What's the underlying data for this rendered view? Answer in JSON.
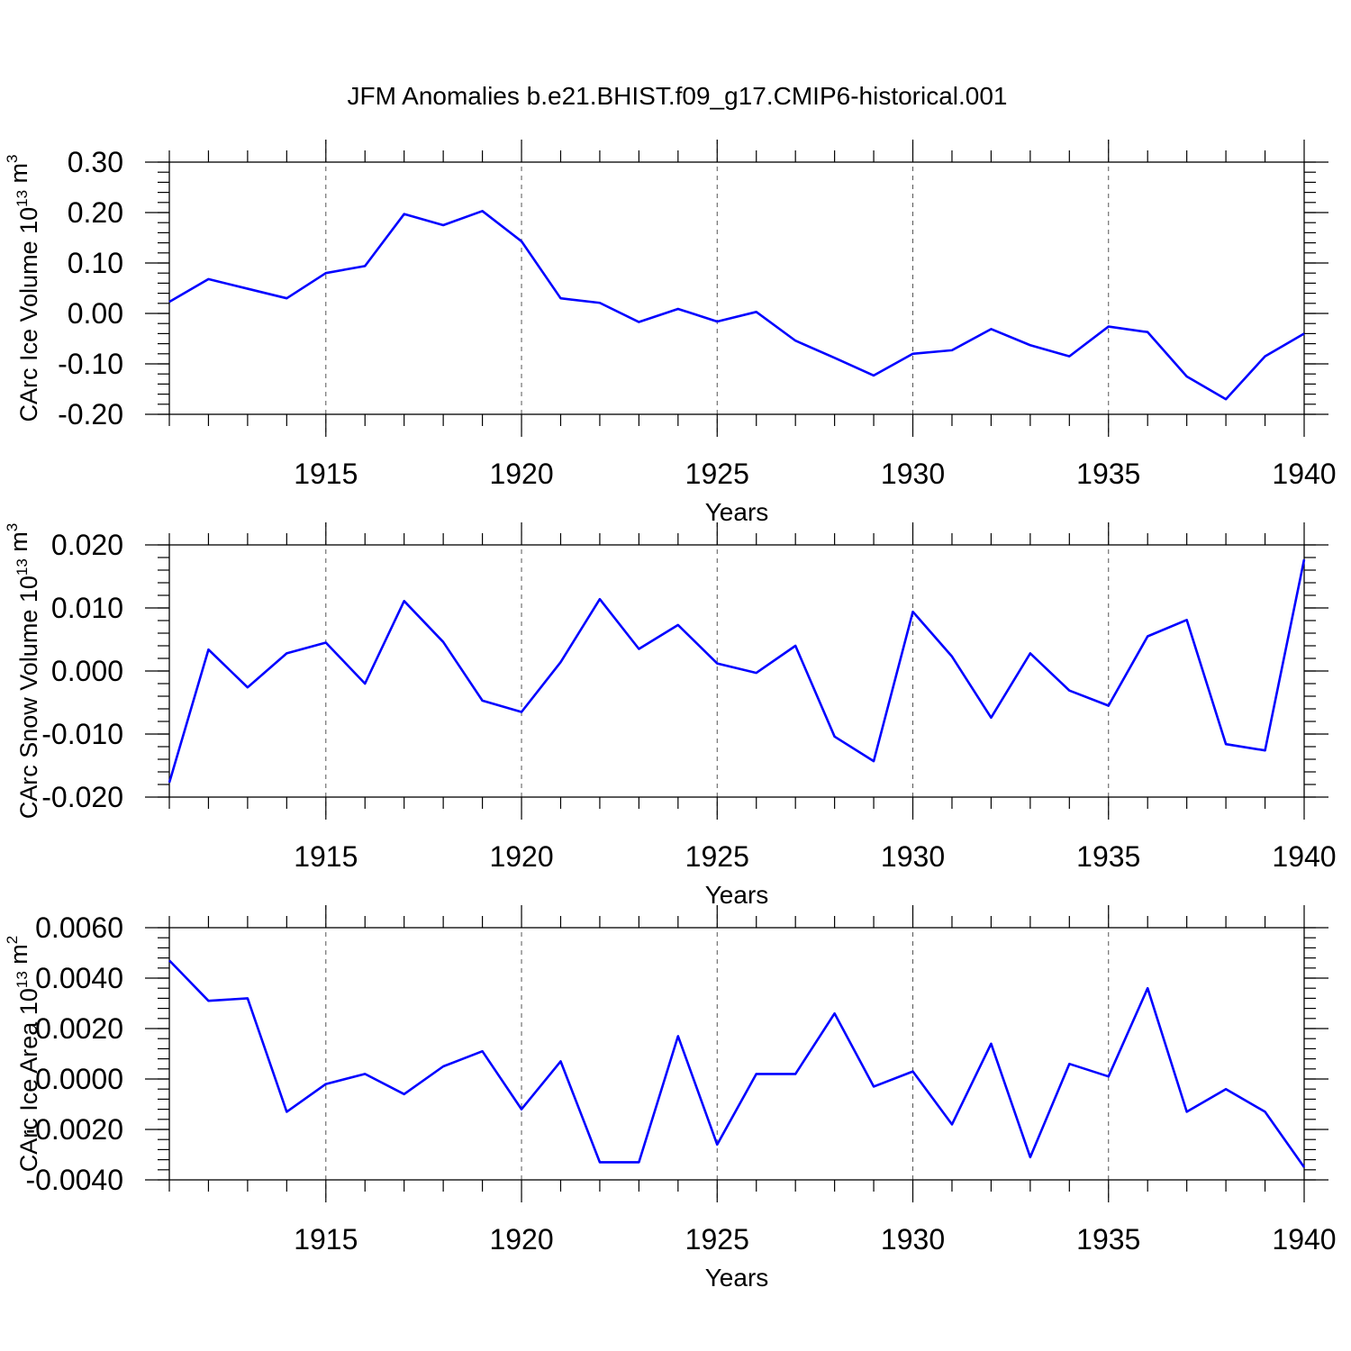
{
  "title": "JFM Anomalies b.e21.BHIST.f09_g17.CMIP6-historical.001",
  "line_color": "#0000ff",
  "chart_data": [
    {
      "type": "line",
      "ylabel_main": "CArc Ice Volume 10",
      "ylabel_exp": "13",
      "ylabel_unit": " m",
      "ylabel_unit_exp": "3",
      "xlabel": "Years",
      "xlim": [
        1911,
        1940
      ],
      "ylim": [
        -0.2,
        0.3
      ],
      "yticks": [
        -0.2,
        -0.1,
        0.0,
        0.1,
        0.2,
        0.3
      ],
      "ytick_labels": [
        "-0.20",
        "-0.10",
        "0.00",
        "0.10",
        "0.20",
        "0.30"
      ],
      "yminor_step": 0.02,
      "xticks": [
        1915,
        1920,
        1925,
        1930,
        1935,
        1940
      ],
      "xtick_labels": [
        "1915",
        "1920",
        "1925",
        "1930",
        "1935",
        "1940"
      ],
      "grid_x": [
        1915,
        1920,
        1925,
        1930,
        1935
      ],
      "x": [
        1911,
        1912,
        1913,
        1914,
        1915,
        1916,
        1917,
        1918,
        1919,
        1920,
        1921,
        1922,
        1923,
        1924,
        1925,
        1926,
        1927,
        1928,
        1929,
        1930,
        1931,
        1932,
        1933,
        1934,
        1935,
        1936,
        1937,
        1938,
        1939,
        1940
      ],
      "values": [
        0.023,
        0.068,
        0.049,
        0.03,
        0.08,
        0.094,
        0.197,
        0.175,
        0.203,
        0.143,
        0.03,
        0.021,
        -0.017,
        0.009,
        -0.016,
        0.003,
        -0.054,
        -0.088,
        -0.123,
        -0.08,
        -0.073,
        -0.031,
        -0.063,
        -0.085,
        -0.026,
        -0.037,
        -0.125,
        -0.17,
        -0.085,
        -0.04
      ]
    },
    {
      "type": "line",
      "ylabel_main": "CArc Snow Volume 10",
      "ylabel_exp": "13",
      "ylabel_unit": " m",
      "ylabel_unit_exp": "3",
      "xlabel": "Years",
      "xlim": [
        1911,
        1940
      ],
      "ylim": [
        -0.02,
        0.02
      ],
      "yticks": [
        -0.02,
        -0.01,
        0.0,
        0.01,
        0.02
      ],
      "ytick_labels": [
        "-0.020",
        "-0.010",
        "0.000",
        "0.010",
        "0.020"
      ],
      "yminor_step": 0.002,
      "xticks": [
        1915,
        1920,
        1925,
        1930,
        1935,
        1940
      ],
      "xtick_labels": [
        "1915",
        "1920",
        "1925",
        "1930",
        "1935",
        "1940"
      ],
      "grid_x": [
        1915,
        1920,
        1925,
        1930,
        1935
      ],
      "x": [
        1911,
        1912,
        1913,
        1914,
        1915,
        1916,
        1917,
        1918,
        1919,
        1920,
        1921,
        1922,
        1923,
        1924,
        1925,
        1926,
        1927,
        1928,
        1929,
        1930,
        1931,
        1932,
        1933,
        1934,
        1935,
        1936,
        1937,
        1938,
        1939,
        1940
      ],
      "values": [
        -0.0177,
        0.0034,
        -0.0026,
        0.0028,
        0.0045,
        -0.002,
        0.0111,
        0.0046,
        -0.0047,
        -0.0065,
        0.0014,
        0.0114,
        0.0035,
        0.0073,
        0.0012,
        -0.0003,
        0.004,
        -0.0104,
        -0.0143,
        0.0094,
        0.0023,
        -0.0074,
        0.0028,
        -0.0031,
        -0.0055,
        0.0055,
        0.0081,
        -0.0116,
        -0.0126,
        0.0177
      ]
    },
    {
      "type": "line",
      "ylabel_main": "CArc Ice Area 10",
      "ylabel_exp": "13",
      "ylabel_unit": " m",
      "ylabel_unit_exp": "2",
      "xlabel": "Years",
      "xlim": [
        1911,
        1940
      ],
      "ylim": [
        -0.004,
        0.006
      ],
      "yticks": [
        -0.004,
        -0.002,
        0.0,
        0.002,
        0.004,
        0.006
      ],
      "ytick_labels": [
        "-0.0040",
        "-0.0020",
        "0.0000",
        "0.0020",
        "0.0040",
        "0.0060"
      ],
      "yminor_step": 0.0004,
      "xticks": [
        1915,
        1920,
        1925,
        1930,
        1935,
        1940
      ],
      "xtick_labels": [
        "1915",
        "1920",
        "1925",
        "1930",
        "1935",
        "1940"
      ],
      "grid_x": [
        1915,
        1920,
        1925,
        1930,
        1935
      ],
      "x": [
        1911,
        1912,
        1913,
        1914,
        1915,
        1916,
        1917,
        1918,
        1919,
        1920,
        1921,
        1922,
        1923,
        1924,
        1925,
        1926,
        1927,
        1928,
        1929,
        1930,
        1931,
        1932,
        1933,
        1934,
        1935,
        1936,
        1937,
        1938,
        1939,
        1940
      ],
      "values": [
        0.0047,
        0.0031,
        0.0032,
        -0.0013,
        -0.0002,
        0.0002,
        -0.0006,
        0.0005,
        0.0011,
        -0.0012,
        0.0007,
        -0.0033,
        -0.0033,
        0.0017,
        -0.0026,
        0.0002,
        0.0002,
        0.0026,
        -0.0003,
        0.0003,
        -0.0018,
        0.0014,
        -0.0031,
        0.0006,
        0.0001,
        0.0036,
        -0.0013,
        -0.0004,
        -0.0013,
        -0.0035
      ]
    }
  ]
}
